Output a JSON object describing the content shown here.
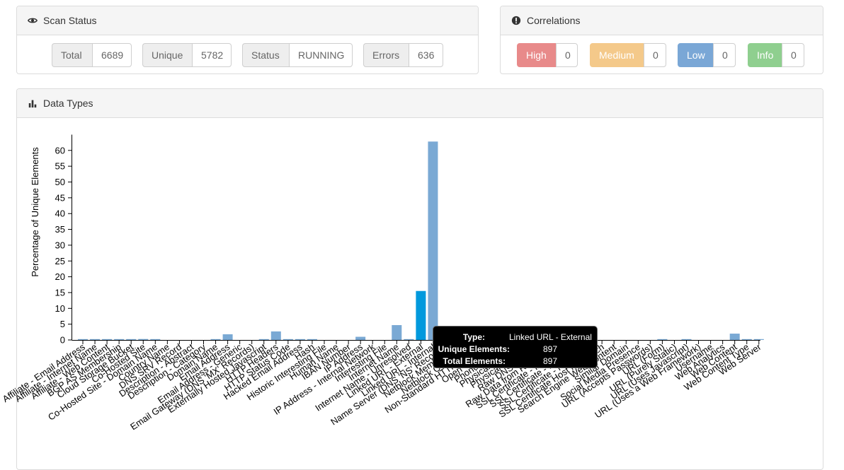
{
  "scan_status": {
    "title": "Scan Status",
    "stats": [
      {
        "label": "Total",
        "value": "6689"
      },
      {
        "label": "Unique",
        "value": "5782"
      },
      {
        "label": "Status",
        "value": "RUNNING"
      },
      {
        "label": "Errors",
        "value": "636"
      }
    ]
  },
  "correlations": {
    "title": "Correlations",
    "items": [
      {
        "label": "High",
        "value": "0",
        "color": "#e88a8a"
      },
      {
        "label": "Medium",
        "value": "0",
        "color": "#f4c98a"
      },
      {
        "label": "Low",
        "value": "0",
        "color": "#7aa7d6"
      },
      {
        "label": "Info",
        "value": "0",
        "color": "#8fcf8f"
      }
    ]
  },
  "data_types": {
    "title": "Data Types"
  },
  "tooltip": {
    "type_label": "Type:",
    "type_value": "Linked URL - External",
    "unique_label": "Unique Elements:",
    "unique_value": "897",
    "total_label": "Total Elements:",
    "total_value": "897"
  },
  "chart_data": {
    "type": "bar",
    "ylabel": "Percentage of Unique Elements",
    "ylim": [
      0,
      65
    ],
    "yticks": [
      0,
      5,
      10,
      15,
      20,
      25,
      30,
      35,
      40,
      45,
      50,
      55,
      60
    ],
    "bar_color": "#7aa9d4",
    "highlight_color": "#0099dd",
    "highlight": "Linked URL - External",
    "categories": [
      "Affiliate - Email Address",
      "Affiliate - Internet Name",
      "Affiliate - Web Content",
      "BGP AS Membership",
      "Cloud Storage Bucket",
      "Co-Hosted Site",
      "Co-Hosted Site - Domain Name",
      "Country Name",
      "DNS SRV Record",
      "Description - Abstract",
      "Description - Category",
      "Domain Name",
      "Email Address",
      "Email Address - Generic",
      "Email Gateway (DNS 'MX' Records)",
      "Externally Hosted Javascript",
      "HTTP Headers",
      "HTTP Status Code",
      "Hacked Email Address",
      "Hash",
      "Historic Interesting File",
      "Human Name",
      "IBAN Number",
      "IP Address",
      "IP Address - Internal Network",
      "Interesting File",
      "Internet Name",
      "Internet Name - Unresolved",
      "Linked URL - External",
      "Linked URL - Internal",
      "Name Server (DNS 'NS' Records)",
      "Netblock Membership",
      "Netblock Ownership",
      "Non-Standard HTTP Header",
      "Open TCP Port",
      "Phone Number",
      "Physical Address",
      "Physical Location",
      "Raw DNS Records",
      "Raw Data from RIRs/APIs",
      "SSL Certificate - Issued by",
      "SSL Certificate - Issued to",
      "SSL Certificate - Raw Data",
      "SSL Certificate Host Mismatch",
      "Search Engine Web Content",
      "Similar Domain",
      "Social Media Presence",
      "URL (Accepts Passwords)",
      "URL (Form)",
      "URL (Purely Static)",
      "URL (Uses Javascript)",
      "URL (Uses a Web Framework)",
      "Username",
      "Web Analytics",
      "Web Content",
      "Web Content Type",
      "Web Server"
    ],
    "values": [
      0.1,
      0.1,
      0.1,
      0.1,
      0.1,
      0.3,
      0.1,
      0.0,
      0.0,
      0.0,
      0.0,
      0.1,
      1.8,
      0.0,
      0.0,
      0.1,
      2.7,
      0.1,
      0.1,
      0.1,
      0.0,
      0.0,
      0.0,
      1.0,
      0.0,
      0.0,
      4.7,
      0.2,
      15.5,
      62.8,
      0.1,
      0.1,
      0.2,
      0.1,
      0.5,
      0.1,
      0.1,
      0.1,
      0.4,
      0.1,
      0.1,
      0.1,
      0.3,
      0.0,
      0.0,
      0.0,
      0.0,
      0.0,
      0.2,
      0.0,
      0.2,
      0.0,
      0.0,
      0.0,
      2.0,
      0.1,
      0.1
    ]
  }
}
